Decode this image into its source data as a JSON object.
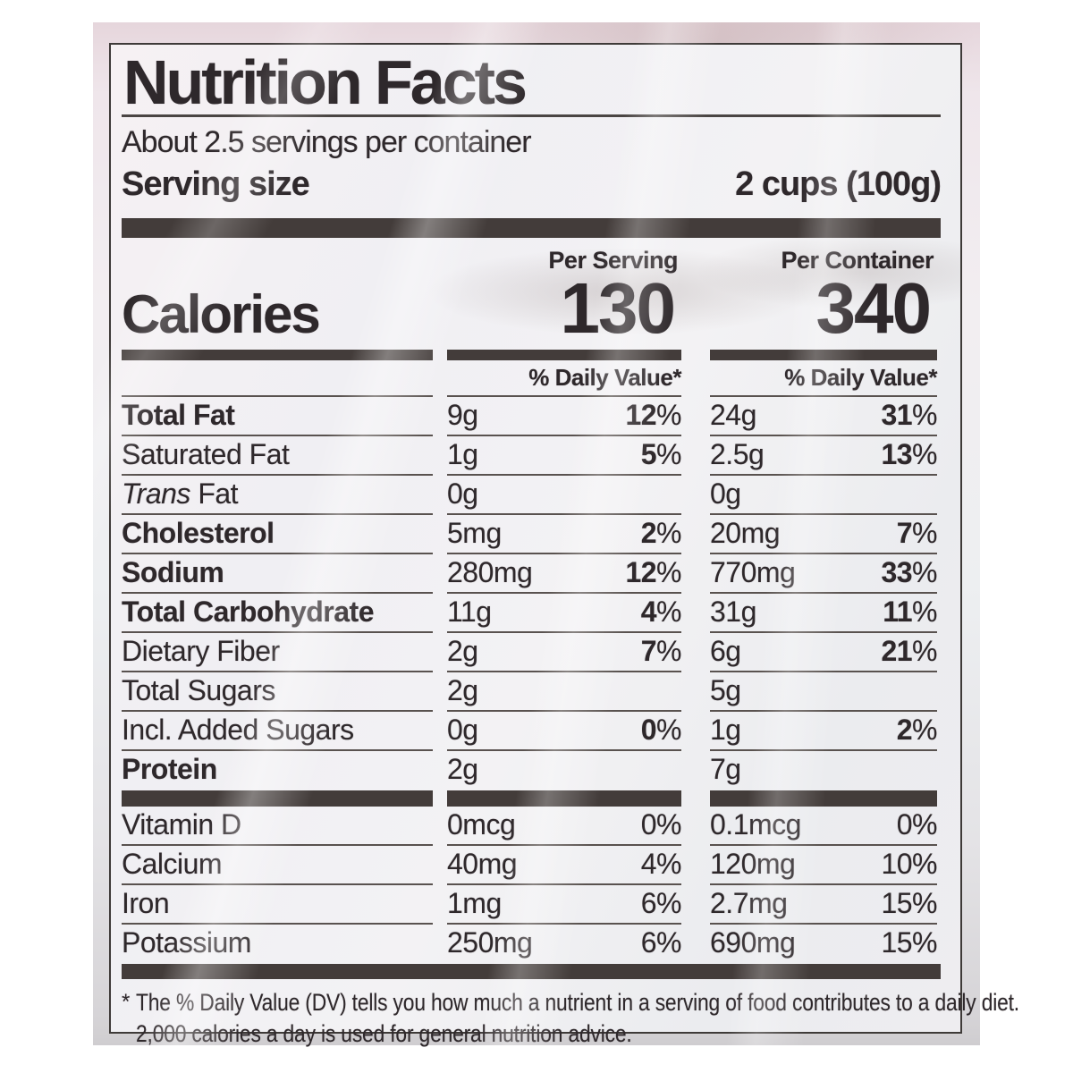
{
  "colors": {
    "ink": "#2e282b",
    "bar": "#433c3a",
    "rule": "#59524f"
  },
  "label": {
    "title": "Nutrition Facts",
    "servings_per_container": "About 2.5 servings per container",
    "serving_size_label": "Serving size",
    "serving_size_value": "2 cups (100g)",
    "per_serving_header": "Per Serving",
    "per_container_header": "Per Container",
    "calories_label": "Calories",
    "calories_per_serving": "130",
    "calories_per_container": "340",
    "daily_value_header": "% Daily Value*",
    "nutrients": [
      {
        "label": "Total Fat",
        "bold": true,
        "indent": 0,
        "serving": {
          "amount": "9g",
          "dv": "12%"
        },
        "container": {
          "amount": "24g",
          "dv": "31%"
        }
      },
      {
        "label": "Saturated Fat",
        "bold": false,
        "indent": 1,
        "serving": {
          "amount": "1g",
          "dv": "5%"
        },
        "container": {
          "amount": "2.5g",
          "dv": "13%"
        }
      },
      {
        "label_italic": "Trans",
        "label": " Fat",
        "bold": false,
        "indent": 1,
        "serving": {
          "amount": "0g",
          "dv": ""
        },
        "container": {
          "amount": "0g",
          "dv": ""
        }
      },
      {
        "label": "Cholesterol",
        "bold": true,
        "indent": 0,
        "serving": {
          "amount": "5mg",
          "dv": "2%"
        },
        "container": {
          "amount": "20mg",
          "dv": "7%"
        }
      },
      {
        "label": "Sodium",
        "bold": true,
        "indent": 0,
        "serving": {
          "amount": "280mg",
          "dv": "12%"
        },
        "container": {
          "amount": "770mg",
          "dv": "33%"
        }
      },
      {
        "label": "Total Carbohydrate",
        "bold": true,
        "indent": 0,
        "serving": {
          "amount": "11g",
          "dv": "4%"
        },
        "container": {
          "amount": "31g",
          "dv": "11%"
        }
      },
      {
        "label": "Dietary Fiber",
        "bold": false,
        "indent": 1,
        "serving": {
          "amount": "2g",
          "dv": "7%"
        },
        "container": {
          "amount": "6g",
          "dv": "21%"
        }
      },
      {
        "label": "Total Sugars",
        "bold": false,
        "indent": 1,
        "serving": {
          "amount": "2g",
          "dv": ""
        },
        "container": {
          "amount": "5g",
          "dv": ""
        }
      },
      {
        "label": "Incl. Added Sugars",
        "bold": false,
        "indent": 2,
        "serving": {
          "amount": "0g",
          "dv": "0%"
        },
        "container": {
          "amount": "1g",
          "dv": "2%"
        }
      },
      {
        "label": "Protein",
        "bold": true,
        "indent": 0,
        "serving": {
          "amount": "2g",
          "dv": ""
        },
        "container": {
          "amount": "7g",
          "dv": ""
        }
      }
    ],
    "vitamins": [
      {
        "label": "Vitamin D",
        "bold": false,
        "indent": 0,
        "serving": {
          "amount": "0mcg",
          "dv": "0%"
        },
        "container": {
          "amount": "0.1mcg",
          "dv": "0%"
        }
      },
      {
        "label": "Calcium",
        "bold": false,
        "indent": 0,
        "serving": {
          "amount": "40mg",
          "dv": "4%"
        },
        "container": {
          "amount": "120mg",
          "dv": "10%"
        }
      },
      {
        "label": "Iron",
        "bold": false,
        "indent": 0,
        "serving": {
          "amount": "1mg",
          "dv": "6%"
        },
        "container": {
          "amount": "2.7mg",
          "dv": "15%"
        }
      },
      {
        "label": "Potassium",
        "bold": false,
        "indent": 0,
        "serving": {
          "amount": "250mg",
          "dv": "6%"
        },
        "container": {
          "amount": "690mg",
          "dv": "15%"
        }
      }
    ],
    "footnote_marker": "*",
    "footnote_line1": "The % Daily Value (DV) tells you how much a nutrient in a serving of food contributes to a daily diet.",
    "footnote_line2": "2,000 calories a day is used for general nutrition advice."
  }
}
